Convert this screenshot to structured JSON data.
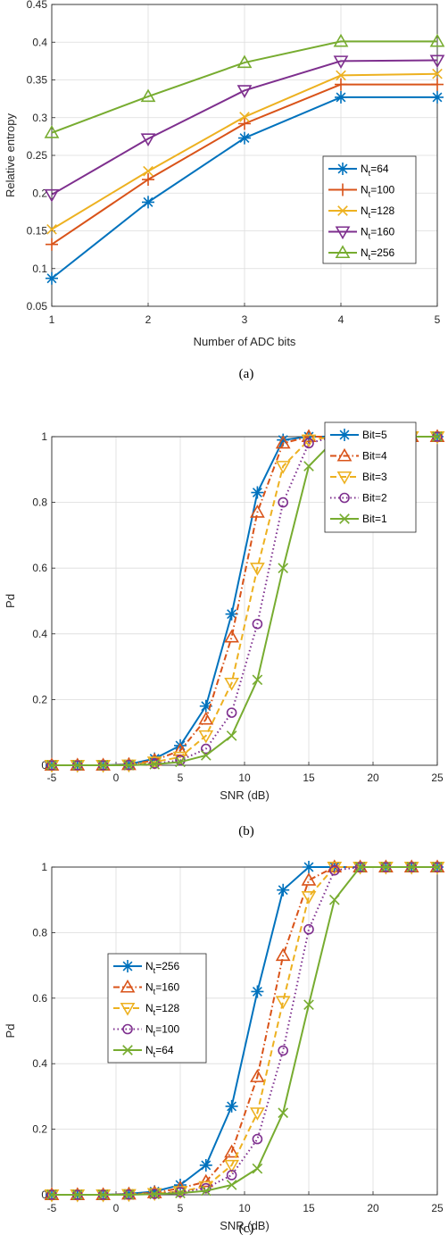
{
  "chart_data": [
    {
      "type": "line",
      "caption": "(a)",
      "xlabel": "Number of ADC bits",
      "ylabel": "Relative entropy",
      "x": [
        1,
        2,
        3,
        4,
        5
      ],
      "xlim": [
        1,
        5
      ],
      "ylim": [
        0.05,
        0.45
      ],
      "xticks": [
        "1",
        "2",
        "3",
        "4",
        "5"
      ],
      "yticks": [
        "0.05",
        "0.1",
        "0.15",
        "0.2",
        "0.25",
        "0.3",
        "0.35",
        "0.4",
        "0.45"
      ],
      "grid": true,
      "legend_position": "right",
      "series": [
        {
          "name": "N",
          "sub": "t",
          "suffix": "=64",
          "color": "#0072BD",
          "marker": "asterisk",
          "dash": "solid",
          "values": [
            0.087,
            0.188,
            0.273,
            0.327,
            0.327
          ]
        },
        {
          "name": "N",
          "sub": "t",
          "suffix": "=100",
          "color": "#D95319",
          "marker": "plus",
          "dash": "solid",
          "values": [
            0.132,
            0.218,
            0.292,
            0.344,
            0.344
          ]
        },
        {
          "name": "N",
          "sub": "t",
          "suffix": "=128",
          "color": "#EDB120",
          "marker": "x",
          "dash": "solid",
          "values": [
            0.152,
            0.229,
            0.301,
            0.356,
            0.358
          ]
        },
        {
          "name": "N",
          "sub": "t",
          "suffix": "=160",
          "color": "#7E2F8E",
          "marker": "triangle-down",
          "dash": "solid",
          "values": [
            0.198,
            0.272,
            0.336,
            0.375,
            0.376
          ]
        },
        {
          "name": "N",
          "sub": "t",
          "suffix": "=256",
          "color": "#77AC30",
          "marker": "triangle-up",
          "dash": "solid",
          "values": [
            0.28,
            0.328,
            0.373,
            0.401,
            0.401
          ]
        }
      ]
    },
    {
      "type": "line",
      "caption": "(b)",
      "xlabel": "SNR (dB)",
      "ylabel": "Pd",
      "x": [
        -5,
        -3,
        -1,
        1,
        3,
        5,
        7,
        9,
        11,
        13,
        15,
        17,
        19,
        21,
        23,
        25
      ],
      "xlim": [
        -5,
        25
      ],
      "ylim": [
        0,
        1
      ],
      "xticks": [
        "-5",
        "0",
        "5",
        "10",
        "15",
        "20",
        "25"
      ],
      "yticks": [
        "0",
        "0.2",
        "0.4",
        "0.6",
        "0.8",
        "1"
      ],
      "grid": true,
      "legend_position": "top-right",
      "series": [
        {
          "name": "Bit=5",
          "color": "#0072BD",
          "marker": "asterisk",
          "dash": "solid",
          "values": [
            0,
            0,
            0,
            0.003,
            0.02,
            0.06,
            0.18,
            0.46,
            0.83,
            0.99,
            1,
            1,
            1,
            1,
            1,
            1
          ]
        },
        {
          "name": "Bit=4",
          "color": "#D95319",
          "marker": "triangle-up",
          "dash": "dashdot",
          "values": [
            0,
            0,
            0,
            0.002,
            0.015,
            0.045,
            0.14,
            0.39,
            0.77,
            0.98,
            1,
            1,
            1,
            1,
            1,
            1
          ]
        },
        {
          "name": "Bit=3",
          "color": "#EDB120",
          "marker": "triangle-down",
          "dash": "dashed",
          "values": [
            0,
            0,
            0,
            0.001,
            0.01,
            0.025,
            0.09,
            0.25,
            0.6,
            0.91,
            0.99,
            1,
            1,
            1,
            1,
            1
          ]
        },
        {
          "name": "Bit=2",
          "color": "#7E2F8E",
          "marker": "circle",
          "dash": "dotted",
          "values": [
            0,
            0,
            0,
            0.001,
            0.005,
            0.015,
            0.05,
            0.16,
            0.43,
            0.8,
            0.98,
            1,
            1,
            1,
            1,
            1
          ]
        },
        {
          "name": "Bit=1",
          "color": "#77AC30",
          "marker": "x",
          "dash": "solid",
          "values": [
            0,
            0,
            0,
            0,
            0.003,
            0.01,
            0.03,
            0.09,
            0.26,
            0.6,
            0.91,
            0.99,
            1,
            1,
            1,
            1
          ]
        }
      ]
    },
    {
      "type": "line",
      "caption": "(c)",
      "xlabel": "SNR (dB)",
      "ylabel": "Pd",
      "x": [
        -5,
        -3,
        -1,
        1,
        3,
        5,
        7,
        9,
        11,
        13,
        15,
        17,
        19,
        21,
        23,
        25
      ],
      "xlim": [
        -5,
        25
      ],
      "ylim": [
        0,
        1
      ],
      "xticks": [
        "-5",
        "0",
        "5",
        "10",
        "15",
        "20",
        "25"
      ],
      "yticks": [
        "0",
        "0.2",
        "0.4",
        "0.6",
        "0.8",
        "1"
      ],
      "grid": true,
      "legend_position": "left",
      "series": [
        {
          "name": "N",
          "sub": "t",
          "suffix": "=256",
          "color": "#0072BD",
          "marker": "asterisk",
          "dash": "solid",
          "values": [
            0,
            0,
            0,
            0.003,
            0.01,
            0.03,
            0.09,
            0.27,
            0.62,
            0.93,
            1,
            1,
            1,
            1,
            1,
            1
          ]
        },
        {
          "name": "N",
          "sub": "t",
          "suffix": "=160",
          "color": "#D95319",
          "marker": "triangle-up",
          "dash": "dashdot",
          "values": [
            0,
            0,
            0,
            0.002,
            0.006,
            0.02,
            0.04,
            0.13,
            0.36,
            0.73,
            0.96,
            1,
            1,
            1,
            1,
            1
          ]
        },
        {
          "name": "N",
          "sub": "t",
          "suffix": "=128",
          "color": "#EDB120",
          "marker": "triangle-down",
          "dash": "dashed",
          "values": [
            0,
            0,
            0,
            0.001,
            0.004,
            0.01,
            0.025,
            0.09,
            0.25,
            0.59,
            0.91,
            1,
            1,
            1,
            1,
            1
          ]
        },
        {
          "name": "N",
          "sub": "t",
          "suffix": "=100",
          "color": "#7E2F8E",
          "marker": "circle",
          "dash": "dotted",
          "values": [
            0,
            0,
            0,
            0.001,
            0.003,
            0.008,
            0.02,
            0.06,
            0.17,
            0.44,
            0.81,
            0.99,
            1,
            1,
            1,
            1
          ]
        },
        {
          "name": "N",
          "sub": "t",
          "suffix": "=64",
          "color": "#77AC30",
          "marker": "x",
          "dash": "solid",
          "values": [
            0,
            0,
            0,
            0,
            0.002,
            0.005,
            0.012,
            0.03,
            0.08,
            0.25,
            0.58,
            0.9,
            1,
            1,
            1,
            1
          ]
        }
      ]
    }
  ]
}
